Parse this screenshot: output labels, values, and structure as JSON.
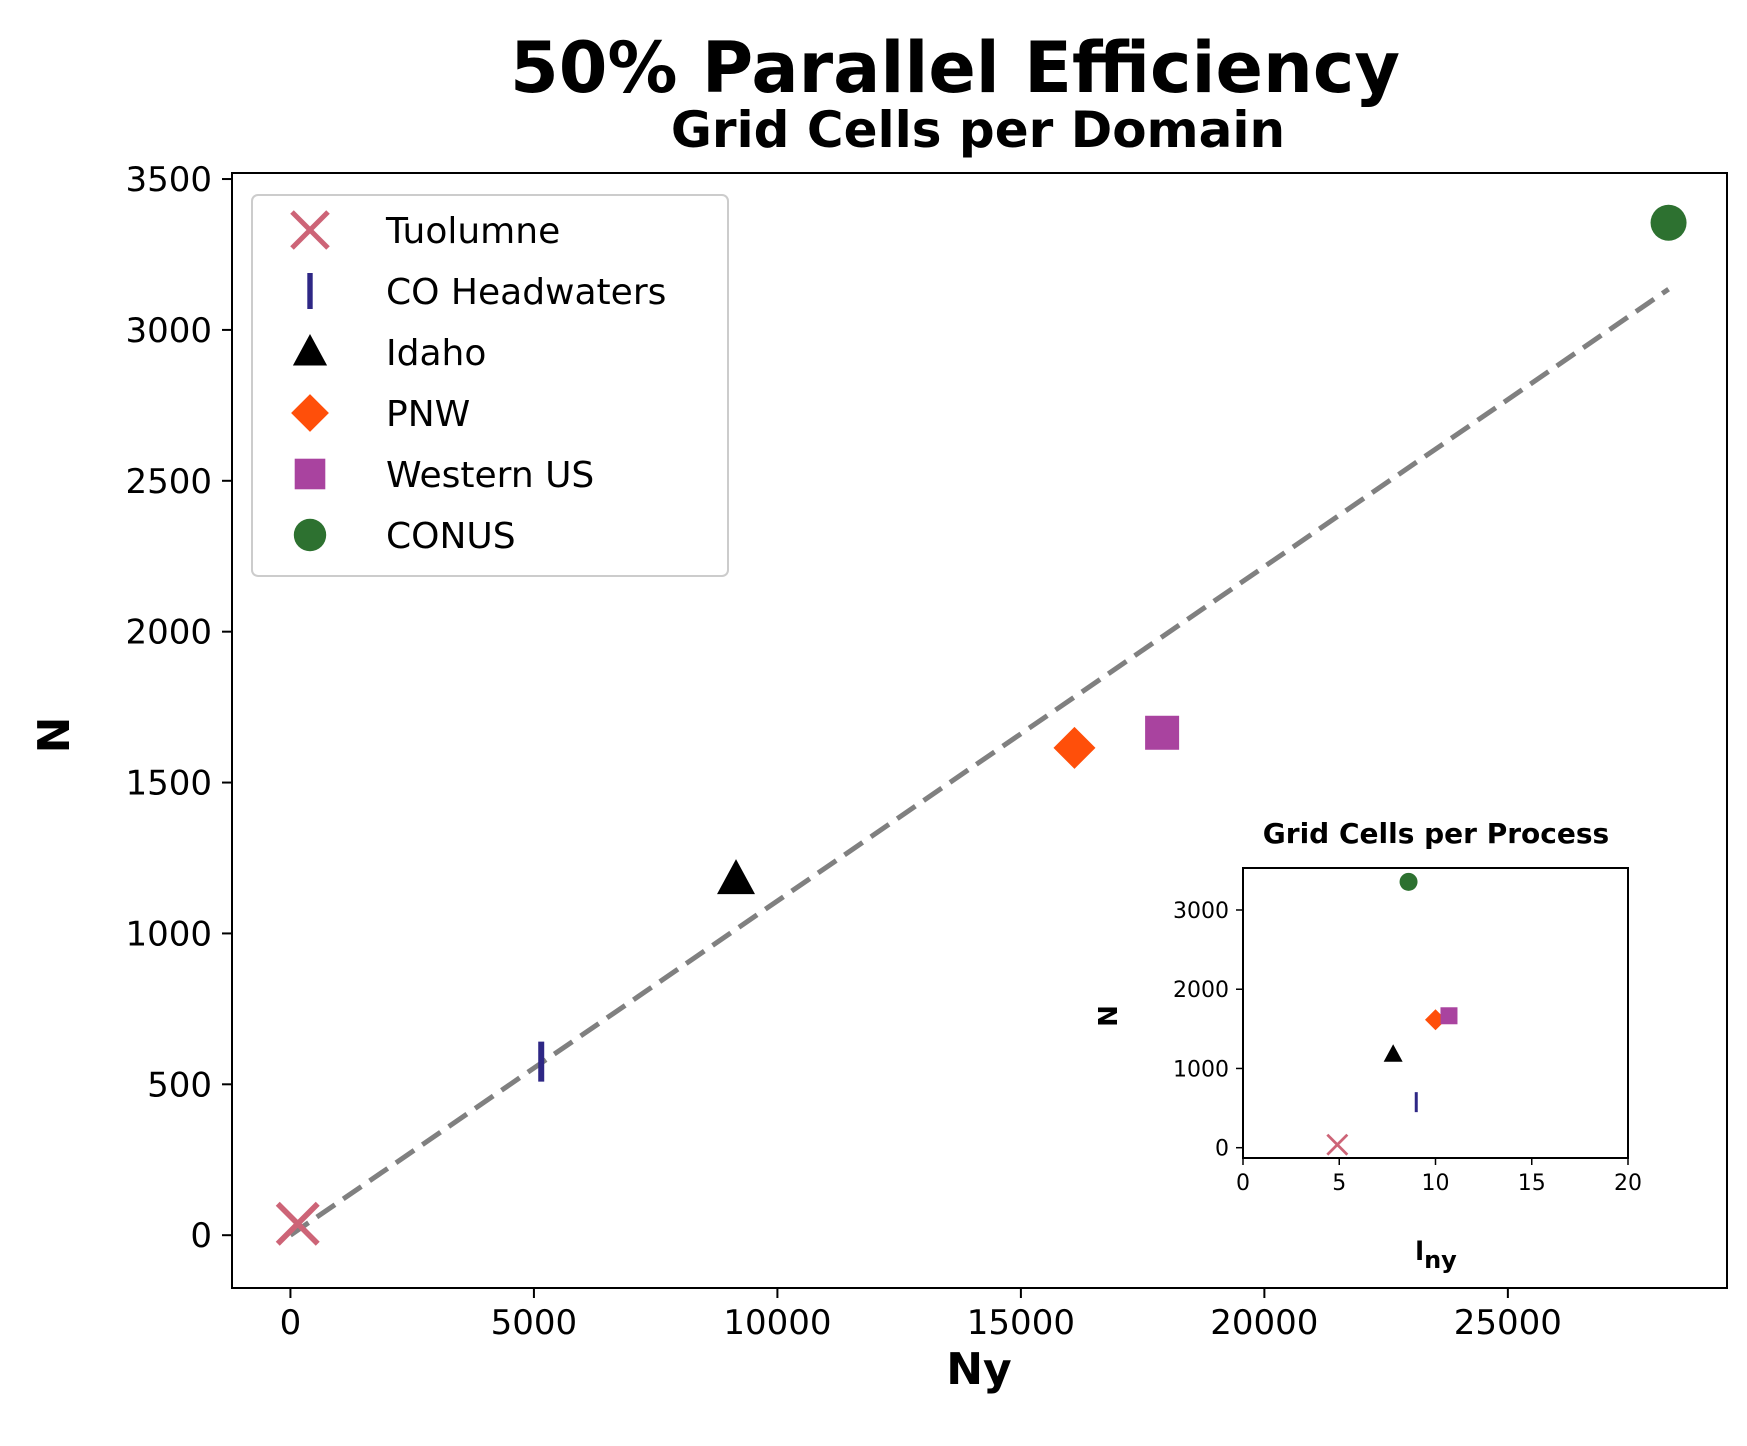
{
  "chart_data": [
    {
      "type": "scatter",
      "title": "50% Parallel Efficiency",
      "subtitle": "Grid Cells per Domain",
      "xlabel": "Ny",
      "ylabel": "N",
      "xlim": [
        -1200,
        29500
      ],
      "ylim": [
        -175,
        3520
      ],
      "xticks": [
        0,
        5000,
        10000,
        15000,
        20000,
        25000
      ],
      "yticks": [
        0,
        500,
        1000,
        1500,
        2000,
        2500,
        3000,
        3500
      ],
      "legend_position": "upper-left",
      "series": [
        {
          "name": "Tuolumne",
          "marker": "x",
          "color": "#cd6477",
          "x": [
            150
          ],
          "y": [
            38
          ]
        },
        {
          "name": "CO Headwaters",
          "marker": "vline",
          "color": "#2e2785",
          "x": [
            5150
          ],
          "y": [
            575
          ]
        },
        {
          "name": "Idaho",
          "marker": "triangle",
          "color": "#000000",
          "x": [
            9150
          ],
          "y": [
            1180
          ]
        },
        {
          "name": "PNW",
          "marker": "diamond",
          "color": "#ff4f0a",
          "x": [
            16100
          ],
          "y": [
            1615
          ]
        },
        {
          "name": "Western US",
          "marker": "square",
          "color": "#a9439f",
          "x": [
            17900
          ],
          "y": [
            1665
          ]
        },
        {
          "name": "CONUS",
          "marker": "circle",
          "color": "#2d7130",
          "x": [
            28300
          ],
          "y": [
            3355
          ]
        }
      ],
      "reference_line": {
        "style": "dashed",
        "color": "#808080",
        "x": [
          0,
          28300
        ],
        "y": [
          0,
          3135
        ]
      }
    },
    {
      "type": "scatter",
      "title": "Grid Cells per Process",
      "xlabel": "l",
      "xlabel_sub": "ny",
      "ylabel": "N",
      "xlim": [
        0,
        20
      ],
      "ylim": [
        -130,
        3530
      ],
      "xticks": [
        0,
        5,
        10,
        15,
        20
      ],
      "yticks": [
        0,
        1000,
        2000,
        3000
      ],
      "series": [
        {
          "name": "Tuolumne",
          "marker": "x",
          "color": "#cd6477",
          "x": [
            4.9
          ],
          "y": [
            38
          ]
        },
        {
          "name": "CO Headwaters",
          "marker": "vline",
          "color": "#2e2785",
          "x": [
            9.0
          ],
          "y": [
            575
          ]
        },
        {
          "name": "Idaho",
          "marker": "triangle",
          "color": "#000000",
          "x": [
            7.8
          ],
          "y": [
            1180
          ]
        },
        {
          "name": "PNW",
          "marker": "diamond",
          "color": "#ff4f0a",
          "x": [
            10.0
          ],
          "y": [
            1615
          ]
        },
        {
          "name": "Western US",
          "marker": "square",
          "color": "#a9439f",
          "x": [
            10.7
          ],
          "y": [
            1665
          ]
        },
        {
          "name": "CONUS",
          "marker": "circle",
          "color": "#2d7130",
          "x": [
            8.6
          ],
          "y": [
            3355
          ]
        }
      ]
    }
  ]
}
